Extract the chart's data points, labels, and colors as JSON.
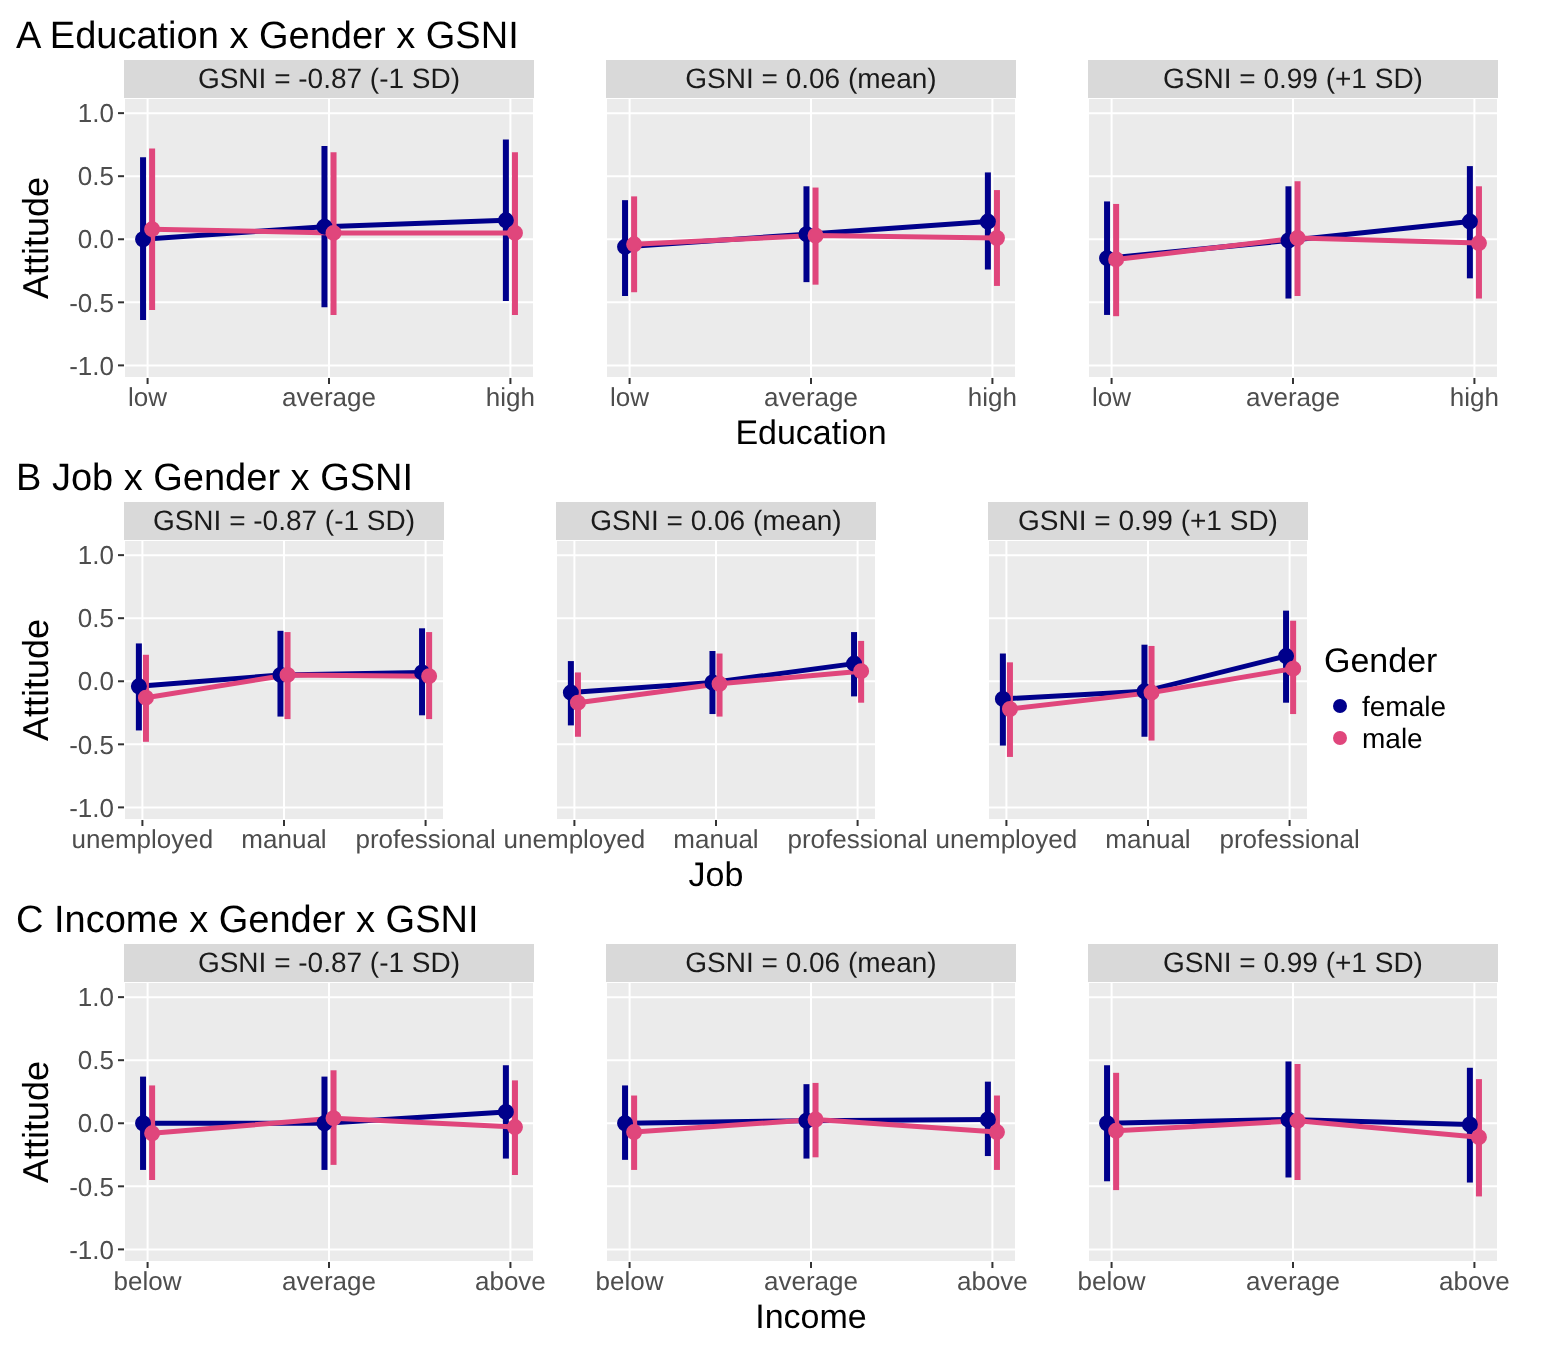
{
  "chart_data": [
    {
      "type": "line",
      "title": "A Education x Gender x GSNI",
      "subtitle": "GSNI = -0.87 (-1 SD)",
      "ylabel": "Attitude",
      "categories": [
        "low",
        "average",
        "high"
      ],
      "ylim": [
        -1.1,
        1.12
      ],
      "yticks": [
        {
          "value": -1,
          "label": "-1.0"
        },
        {
          "value": -0.5,
          "label": "-0.5"
        },
        {
          "value": 0,
          "label": "0.0"
        },
        {
          "value": 0.5,
          "label": "0.5"
        },
        {
          "value": 1,
          "label": "1.0"
        }
      ],
      "grid": true,
      "marker": "circle",
      "series": [
        {
          "color": "#00008b",
          "values": [
            0.0,
            0.1,
            0.15
          ],
          "errors": [
            [
              -0.64,
              0.65
            ],
            [
              -0.54,
              0.74
            ],
            [
              -0.49,
              0.79
            ]
          ]
        },
        {
          "color": "#e0467c",
          "values": [
            0.08,
            0.05,
            0.05
          ],
          "errors": [
            [
              -0.56,
              0.72
            ],
            [
              -0.6,
              0.69
            ],
            [
              -0.6,
              0.69
            ]
          ]
        }
      ]
    },
    {
      "type": "line",
      "subtitle": "GSNI = 0.06 (mean)",
      "xlabel": "Education",
      "categories": [
        "low",
        "average",
        "high"
      ],
      "ylim": [
        -1.1,
        1.12
      ],
      "yticks": [
        -1,
        -0.5,
        0,
        0.5,
        1
      ],
      "grid": true,
      "marker": "circle",
      "tick_labels": "x",
      "series": [
        {
          "color": "#00008b",
          "values": [
            -0.06,
            0.04,
            0.14
          ],
          "errors": [
            [
              -0.45,
              0.31
            ],
            [
              -0.34,
              0.42
            ],
            [
              -0.24,
              0.53
            ]
          ]
        },
        {
          "color": "#e0467c",
          "values": [
            -0.04,
            0.03,
            0.01
          ],
          "errors": [
            [
              -0.42,
              0.34
            ],
            [
              -0.36,
              0.41
            ],
            [
              -0.37,
              0.39
            ]
          ]
        }
      ]
    },
    {
      "type": "line",
      "subtitle": "GSNI = 0.99 (+1 SD)",
      "categories": [
        "low",
        "average",
        "high"
      ],
      "ylim": [
        -1.1,
        1.12
      ],
      "yticks": [
        -1,
        -0.5,
        0,
        0.5,
        1
      ],
      "grid": true,
      "marker": "circle",
      "tick_labels": "x",
      "series": [
        {
          "color": "#00008b",
          "values": [
            -0.15,
            -0.01,
            0.14
          ],
          "errors": [
            [
              -0.6,
              0.3
            ],
            [
              -0.47,
              0.42
            ],
            [
              -0.31,
              0.58
            ]
          ]
        },
        {
          "color": "#e0467c",
          "values": [
            -0.16,
            0.01,
            -0.03
          ],
          "errors": [
            [
              -0.61,
              0.28
            ],
            [
              -0.45,
              0.46
            ],
            [
              -0.47,
              0.42
            ]
          ]
        }
      ]
    },
    {
      "type": "line",
      "title": "B Job x Gender x GSNI",
      "subtitle": "GSNI = -0.87 (-1 SD)",
      "ylabel": "Attitude",
      "categories": [
        "unemployed",
        "manual",
        "professional"
      ],
      "ylim": [
        -1.1,
        1.12
      ],
      "yticks": [
        {
          "value": -1,
          "label": "-1.0"
        },
        {
          "value": -0.5,
          "label": "-0.5"
        },
        {
          "value": 0,
          "label": "0.0"
        },
        {
          "value": 0.5,
          "label": "0.5"
        },
        {
          "value": 1,
          "label": "1.0"
        }
      ],
      "grid": true,
      "marker": "circle",
      "series": [
        {
          "color": "#00008b",
          "values": [
            -0.04,
            0.05,
            0.07
          ],
          "errors": [
            [
              -0.39,
              0.3
            ],
            [
              -0.28,
              0.4
            ],
            [
              -0.27,
              0.42
            ]
          ]
        },
        {
          "color": "#e0467c",
          "values": [
            -0.13,
            0.05,
            0.04
          ],
          "errors": [
            [
              -0.48,
              0.21
            ],
            [
              -0.3,
              0.39
            ],
            [
              -0.3,
              0.39
            ]
          ]
        }
      ]
    },
    {
      "type": "line",
      "subtitle": "GSNI = 0.06 (mean)",
      "xlabel": "Job",
      "categories": [
        "unemployed",
        "manual",
        "professional"
      ],
      "ylim": [
        -1.1,
        1.12
      ],
      "yticks": [
        -1,
        -0.5,
        0,
        0.5,
        1
      ],
      "grid": true,
      "marker": "circle",
      "tick_labels": "x",
      "series": [
        {
          "color": "#00008b",
          "values": [
            -0.09,
            -0.01,
            0.14
          ],
          "errors": [
            [
              -0.35,
              0.16
            ],
            [
              -0.26,
              0.24
            ],
            [
              -0.12,
              0.39
            ]
          ]
        },
        {
          "color": "#e0467c",
          "values": [
            -0.17,
            -0.02,
            0.08
          ],
          "errors": [
            [
              -0.44,
              0.07
            ],
            [
              -0.28,
              0.22
            ],
            [
              -0.17,
              0.32
            ]
          ]
        }
      ]
    },
    {
      "type": "line",
      "subtitle": "GSNI = 0.99 (+1 SD)",
      "categories": [
        "unemployed",
        "manual",
        "professional"
      ],
      "ylim": [
        -1.1,
        1.12
      ],
      "yticks": [
        -1,
        -0.5,
        0,
        0.5,
        1
      ],
      "grid": true,
      "marker": "circle",
      "tick_labels": "x",
      "legend": "right",
      "legend_title": "Gender",
      "series": [
        {
          "name": "female",
          "color": "#00008b",
          "values": [
            -0.14,
            -0.08,
            0.2
          ],
          "errors": [
            [
              -0.51,
              0.22
            ],
            [
              -0.44,
              0.29
            ],
            [
              -0.17,
              0.56
            ]
          ]
        },
        {
          "name": "male",
          "color": "#e0467c",
          "values": [
            -0.22,
            -0.09,
            0.1
          ],
          "errors": [
            [
              -0.6,
              0.15
            ],
            [
              -0.47,
              0.28
            ],
            [
              -0.26,
              0.48
            ]
          ]
        }
      ]
    },
    {
      "type": "line",
      "title": "C Income x Gender x GSNI",
      "subtitle": "GSNI = -0.87 (-1 SD)",
      "ylabel": "Attitude",
      "categories": [
        "below",
        "average",
        "above"
      ],
      "ylim": [
        -1.1,
        1.12
      ],
      "yticks": [
        {
          "value": -1,
          "label": "-1.0"
        },
        {
          "value": -0.5,
          "label": "-0.5"
        },
        {
          "value": 0,
          "label": "0.0"
        },
        {
          "value": 0.5,
          "label": "0.5"
        },
        {
          "value": 1,
          "label": "1.0"
        }
      ],
      "grid": true,
      "marker": "circle",
      "series": [
        {
          "color": "#00008b",
          "values": [
            0.0,
            0.0,
            0.09
          ],
          "errors": [
            [
              -0.37,
              0.37
            ],
            [
              -0.37,
              0.37
            ],
            [
              -0.28,
              0.46
            ]
          ]
        },
        {
          "color": "#e0467c",
          "values": [
            -0.08,
            0.04,
            -0.03
          ],
          "errors": [
            [
              -0.45,
              0.3
            ],
            [
              -0.33,
              0.42
            ],
            [
              -0.41,
              0.34
            ]
          ]
        }
      ]
    },
    {
      "type": "line",
      "subtitle": "GSNI = 0.06 (mean)",
      "xlabel": "Income",
      "categories": [
        "below",
        "average",
        "above"
      ],
      "ylim": [
        -1.1,
        1.12
      ],
      "yticks": [
        -1,
        -0.5,
        0,
        0.5,
        1
      ],
      "grid": true,
      "marker": "circle",
      "tick_labels": "x",
      "series": [
        {
          "color": "#00008b",
          "values": [
            0.0,
            0.02,
            0.03
          ],
          "errors": [
            [
              -0.29,
              0.3
            ],
            [
              -0.28,
              0.31
            ],
            [
              -0.26,
              0.33
            ]
          ]
        },
        {
          "color": "#e0467c",
          "values": [
            -0.07,
            0.03,
            -0.07
          ],
          "errors": [
            [
              -0.37,
              0.22
            ],
            [
              -0.27,
              0.32
            ],
            [
              -0.37,
              0.22
            ]
          ]
        }
      ]
    },
    {
      "type": "line",
      "subtitle": "GSNI = 0.99 (+1 SD)",
      "categories": [
        "below",
        "average",
        "above"
      ],
      "ylim": [
        -1.1,
        1.12
      ],
      "yticks": [
        -1,
        -0.5,
        0,
        0.5,
        1
      ],
      "grid": true,
      "marker": "circle",
      "tick_labels": "x",
      "series": [
        {
          "color": "#00008b",
          "values": [
            0.0,
            0.03,
            -0.01
          ],
          "errors": [
            [
              -0.46,
              0.46
            ],
            [
              -0.43,
              0.49
            ],
            [
              -0.47,
              0.44
            ]
          ]
        },
        {
          "color": "#e0467c",
          "values": [
            -0.06,
            0.02,
            -0.11
          ],
          "errors": [
            [
              -0.53,
              0.4
            ],
            [
              -0.45,
              0.47
            ],
            [
              -0.58,
              0.35
            ]
          ]
        }
      ]
    }
  ]
}
